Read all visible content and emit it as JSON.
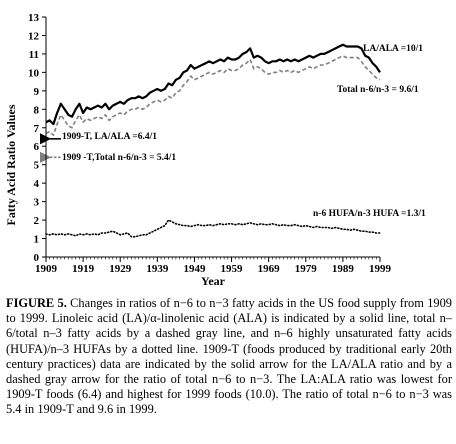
{
  "chart_data": {
    "type": "line",
    "xlabel": "Year",
    "ylabel": "Fatty Acid Ratio Values",
    "xlim": [
      1909,
      1999
    ],
    "ylim": [
      0,
      13
    ],
    "x_ticks": [
      "1909",
      "1919",
      "1929",
      "1939",
      "1949",
      "1959",
      "1969",
      "1979",
      "1989",
      "1999"
    ],
    "y_ticks": [
      "0",
      "1",
      "2",
      "3",
      "4",
      "5",
      "6",
      "7",
      "8",
      "9",
      "10",
      "11",
      "12",
      "13"
    ],
    "grid": false,
    "x": [
      1909,
      1910,
      1911,
      1912,
      1913,
      1914,
      1915,
      1916,
      1917,
      1918,
      1919,
      1920,
      1921,
      1922,
      1923,
      1924,
      1925,
      1926,
      1927,
      1928,
      1929,
      1930,
      1931,
      1932,
      1933,
      1934,
      1935,
      1936,
      1937,
      1938,
      1939,
      1940,
      1941,
      1942,
      1943,
      1944,
      1945,
      1946,
      1947,
      1948,
      1949,
      1950,
      1951,
      1952,
      1953,
      1954,
      1955,
      1956,
      1957,
      1958,
      1959,
      1960,
      1961,
      1962,
      1963,
      1964,
      1965,
      1966,
      1967,
      1968,
      1969,
      1970,
      1971,
      1972,
      1973,
      1974,
      1975,
      1976,
      1977,
      1978,
      1979,
      1980,
      1981,
      1982,
      1983,
      1984,
      1985,
      1986,
      1987,
      1988,
      1989,
      1990,
      1991,
      1992,
      1993,
      1994,
      1995,
      1996,
      1997,
      1998,
      1999
    ],
    "series": [
      {
        "name": "LA/ALA",
        "style": "solid",
        "color": "#000000",
        "values": [
          7.3,
          7.4,
          7.2,
          7.8,
          8.3,
          8.0,
          7.7,
          7.6,
          8.0,
          8.3,
          7.8,
          8.1,
          8.0,
          8.1,
          8.2,
          8.1,
          8.3,
          8.0,
          8.2,
          8.3,
          8.4,
          8.3,
          8.5,
          8.6,
          8.6,
          8.7,
          8.6,
          8.7,
          8.9,
          9.0,
          9.1,
          9.0,
          9.1,
          9.4,
          9.3,
          9.6,
          9.7,
          10.0,
          10.1,
          10.4,
          10.2,
          10.3,
          10.4,
          10.5,
          10.6,
          10.5,
          10.6,
          10.7,
          10.6,
          10.8,
          10.7,
          10.7,
          10.8,
          11.0,
          11.1,
          11.3,
          10.8,
          10.9,
          10.8,
          10.6,
          10.5,
          10.6,
          10.6,
          10.7,
          10.6,
          10.7,
          10.6,
          10.7,
          10.6,
          10.7,
          10.8,
          10.9,
          10.8,
          10.9,
          11.0,
          11.0,
          11.1,
          11.2,
          11.3,
          11.4,
          11.5,
          11.4,
          11.4,
          11.4,
          11.4,
          11.3,
          10.9,
          10.8,
          10.5,
          10.3,
          10.0
        ]
      },
      {
        "name": "Total n-6/n-3",
        "style": "dashed",
        "color": "#7f7f7f",
        "values": [
          6.7,
          6.8,
          6.6,
          7.2,
          7.7,
          7.4,
          7.1,
          7.0,
          7.4,
          7.7,
          7.3,
          7.5,
          7.4,
          7.5,
          7.6,
          7.5,
          7.7,
          7.4,
          7.6,
          7.7,
          7.8,
          7.7,
          7.9,
          8.0,
          8.0,
          8.1,
          8.0,
          8.1,
          8.3,
          8.4,
          8.5,
          8.4,
          8.5,
          8.7,
          8.6,
          8.9,
          9.0,
          9.3,
          9.5,
          9.8,
          9.6,
          9.7,
          9.8,
          9.9,
          10.0,
          9.9,
          10.0,
          10.1,
          10.0,
          10.2,
          10.1,
          10.1,
          10.2,
          10.4,
          10.5,
          10.7,
          10.2,
          10.3,
          10.2,
          10.0,
          9.9,
          10.0,
          10.0,
          10.1,
          10.0,
          10.1,
          10.0,
          10.1,
          10.0,
          10.1,
          10.2,
          10.3,
          10.2,
          10.3,
          10.4,
          10.4,
          10.5,
          10.6,
          10.7,
          10.8,
          10.9,
          10.8,
          10.8,
          10.8,
          10.8,
          10.6,
          10.3,
          10.1,
          9.9,
          9.7,
          9.6
        ]
      },
      {
        "name": "n-6 HUFA/n-3 HUFA",
        "style": "dotted",
        "color": "#000000",
        "values": [
          1.25,
          1.2,
          1.25,
          1.2,
          1.25,
          1.2,
          1.25,
          1.2,
          1.15,
          1.25,
          1.2,
          1.25,
          1.2,
          1.25,
          1.2,
          1.3,
          1.3,
          1.35,
          1.4,
          1.3,
          1.2,
          1.25,
          1.3,
          1.1,
          1.1,
          1.15,
          1.2,
          1.2,
          1.3,
          1.4,
          1.5,
          1.6,
          1.7,
          2.0,
          1.9,
          1.8,
          1.75,
          1.7,
          1.7,
          1.65,
          1.7,
          1.75,
          1.7,
          1.7,
          1.75,
          1.7,
          1.75,
          1.8,
          1.75,
          1.8,
          1.8,
          1.75,
          1.8,
          1.75,
          1.8,
          1.85,
          1.8,
          1.75,
          1.8,
          1.75,
          1.75,
          1.8,
          1.75,
          1.7,
          1.75,
          1.7,
          1.7,
          1.75,
          1.7,
          1.65,
          1.7,
          1.65,
          1.6,
          1.65,
          1.6,
          1.6,
          1.6,
          1.55,
          1.6,
          1.55,
          1.5,
          1.5,
          1.45,
          1.5,
          1.45,
          1.4,
          1.4,
          1.35,
          1.35,
          1.3,
          1.3
        ]
      }
    ],
    "annotations": {
      "la_ala_label": "LA/ALA =10/1",
      "total_label": "Total n-6/n-3 = 9.6/1",
      "hufa_label": "n-6 HUFA/n-3 HUFA =1.3/1",
      "t1909_la_label": "1909-T, LA/ALA =6.4/1",
      "t1909_total_label": "1909 -T,Total n-6/n-3 = 5.4/1"
    },
    "markers": [
      {
        "label": "1909-T LA/ALA",
        "x": 1909,
        "y": 6.4,
        "style": "solid-arrow"
      },
      {
        "label": "1909-T Total n-6/n-3",
        "x": 1909,
        "y": 5.4,
        "style": "dashed-gray-arrow"
      }
    ]
  },
  "caption": {
    "label": "FIGURE 5.",
    "text": " Changes in ratios of n−6 to n−3 fatty acids in the US food supply from 1909 to 1999. Linoleic acid (LA)/α-linolenic acid (ALA) is indicated by a solid line, total n–6/total n–3 fatty acids by a dashed gray line, and n–6 highly unsaturated fatty acids (HUFA)/n–3 HUFAs by a dotted line. 1909-T (foods produced by traditional early 20th century practices) data are indicated by the solid arrow for the LA/ALA ratio and by a dashed gray arrow for the ratio of total n−6 to n−3. The LA:ALA ratio was lowest for 1909-T foods (6.4) and highest for 1999 foods (10.0). The ratio of total n−6 to n−3 was 5.4 in 1909-T and 9.6 in 1999."
  }
}
